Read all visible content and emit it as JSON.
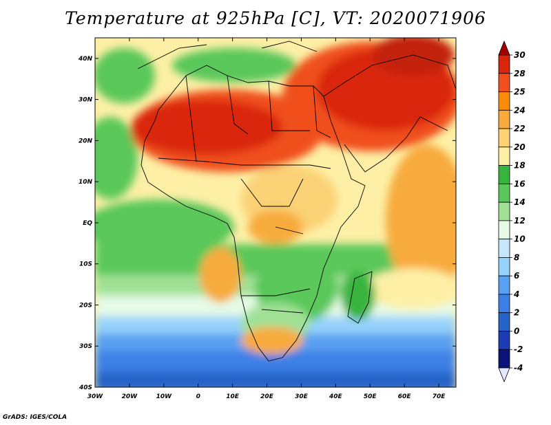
{
  "title": "Temperature at 925hPa [C], VT: 2020071906",
  "footer": "GrADS: IGES/COLA",
  "map": {
    "lon_labels": [
      "30W",
      "20W",
      "10W",
      "0",
      "10E",
      "20E",
      "30E",
      "40E",
      "50E",
      "60E",
      "70E"
    ],
    "lat_labels": [
      "40N",
      "30N",
      "20N",
      "10N",
      "EQ",
      "10S",
      "20S",
      "30S",
      "40S"
    ]
  },
  "colorbar": {
    "labels": [
      "30",
      "28",
      "25",
      "24",
      "22",
      "20",
      "18",
      "16",
      "14",
      "12",
      "10",
      "8",
      "6",
      "4",
      "2",
      "0",
      "-2",
      "-4"
    ],
    "colors": [
      "#a50000",
      "#d9260a",
      "#f0501e",
      "#fa8c0a",
      "#f8ab3c",
      "#fbd276",
      "#fdf0a6",
      "#37b43c",
      "#5ac85a",
      "#a0e196",
      "#e6fae6",
      "#c8e6fa",
      "#96d2fa",
      "#5aa0f0",
      "#3c80e6",
      "#2864c8",
      "#1e3cb4",
      "#0a1478",
      "#e6e6ff"
    ]
  }
}
